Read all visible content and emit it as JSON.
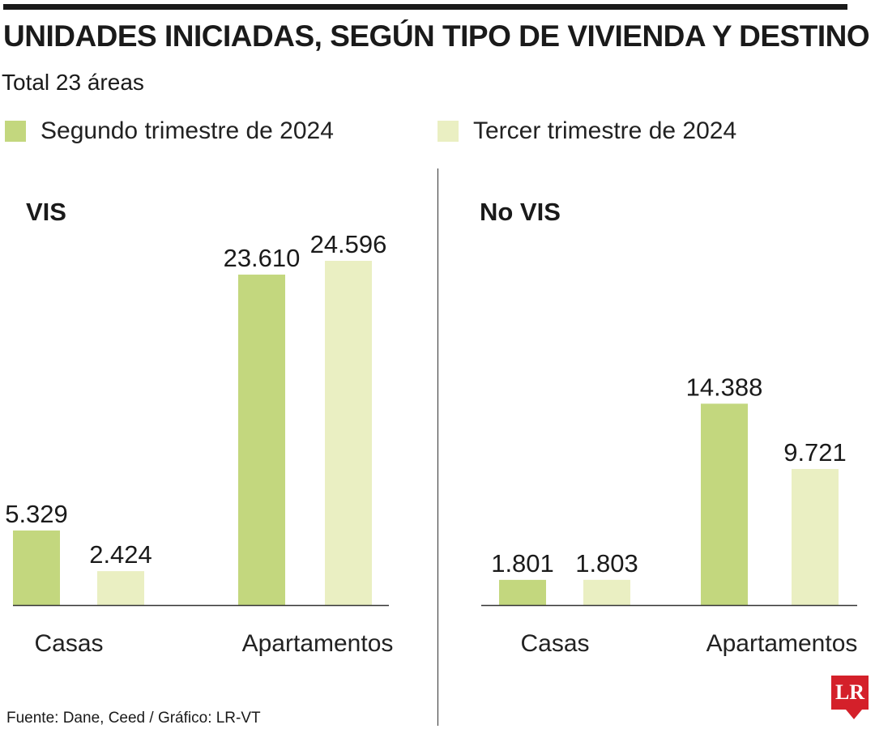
{
  "title": "UNIDADES INICIADAS, SEGÚN TIPO DE VIVIENDA Y DESTINO",
  "subtitle": "Total 23 áreas",
  "source": "Fuente: Dane, Ceed  / Gráfico: LR-VT",
  "logo": "LR",
  "colors": {
    "series_0": "#c3d77e",
    "series_1": "#eaefc2",
    "axis": "#333333",
    "logo": "#d4202a"
  },
  "legend": [
    {
      "label": "Segundo trimestre de 2024",
      "color": "#c3d77e"
    },
    {
      "label": "Tercer trimestre de 2024",
      "color": "#eaefc2"
    }
  ],
  "chart_data": [
    {
      "type": "bar",
      "title": "VIS",
      "categories": [
        "Casas",
        "Apartamentos"
      ],
      "series": [
        {
          "name": "Segundo trimestre de 2024",
          "values": [
            5329,
            23610
          ],
          "labels": [
            "5.329",
            "23.610"
          ]
        },
        {
          "name": "Tercer trimestre de 2024",
          "values": [
            2424,
            24596
          ],
          "labels": [
            "2.424",
            "24.596"
          ]
        }
      ],
      "ylim": [
        0,
        24596
      ],
      "grid": false,
      "legend_position": "top"
    },
    {
      "type": "bar",
      "title": "No VIS",
      "categories": [
        "Casas",
        "Apartamentos"
      ],
      "series": [
        {
          "name": "Segundo trimestre de 2024",
          "values": [
            1801,
            14388
          ],
          "labels": [
            "1.801",
            "14.388"
          ]
        },
        {
          "name": "Tercer trimestre de 2024",
          "values": [
            1803,
            9721
          ],
          "labels": [
            "1.803",
            "9.721"
          ]
        }
      ],
      "ylim": [
        0,
        24596
      ],
      "grid": false,
      "legend_position": "top"
    }
  ]
}
